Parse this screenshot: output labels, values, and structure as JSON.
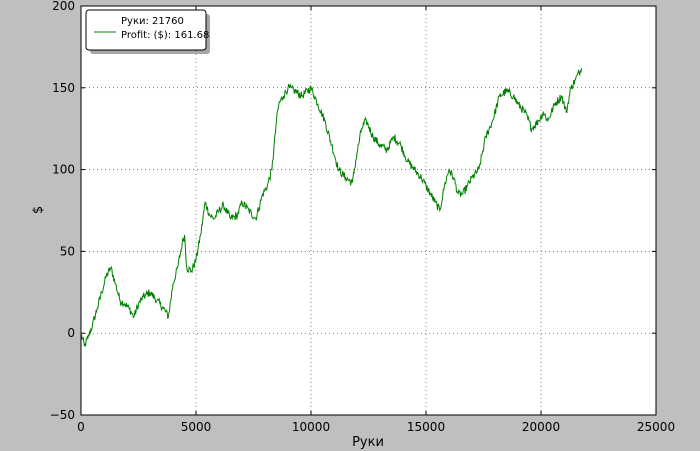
{
  "chart_data": {
    "type": "line",
    "title": "",
    "xlabel": "Руки",
    "ylabel": "$",
    "xlim": [
      0,
      25000
    ],
    "ylim": [
      -50,
      200
    ],
    "x_ticks": [
      "0",
      "5000",
      "10000",
      "15000",
      "20000",
      "25000"
    ],
    "y_ticks": [
      "−50",
      "0",
      "50",
      "100",
      "150",
      "200"
    ],
    "grid": true,
    "legend_position": "top-left",
    "legend": {
      "header": "Руки: 21760",
      "entry": "Profit: ($): 161.68"
    },
    "series": [
      {
        "name": "Profit: ($): 161.68",
        "color": "#008000",
        "x": [
          0,
          150,
          300,
          500,
          700,
          900,
          1100,
          1300,
          1500,
          1700,
          1900,
          2100,
          2300,
          2500,
          2700,
          3000,
          3300,
          3600,
          3800,
          4000,
          4200,
          4400,
          4500,
          4600,
          4800,
          5000,
          5200,
          5400,
          5600,
          5800,
          6000,
          6200,
          6500,
          6800,
          7000,
          7300,
          7600,
          7900,
          8100,
          8300,
          8500,
          8600,
          8800,
          9000,
          9300,
          9600,
          10000,
          10300,
          10600,
          10900,
          11200,
          11500,
          11800,
          12000,
          12200,
          12400,
          12700,
          13000,
          13300,
          13600,
          13900,
          14200,
          14500,
          14800,
          15000,
          15200,
          15400,
          15600,
          15800,
          16000,
          16200,
          16400,
          16600,
          16800,
          17000,
          17300,
          17600,
          17900,
          18200,
          18500,
          18800,
          19000,
          19300,
          19600,
          19900,
          20100,
          20300,
          20600,
          20900,
          21100,
          21300,
          21500,
          21760
        ],
        "y": [
          0,
          -8,
          -3,
          5,
          15,
          25,
          35,
          40,
          30,
          20,
          18,
          15,
          10,
          18,
          22,
          25,
          20,
          15,
          10,
          30,
          40,
          55,
          60,
          40,
          38,
          45,
          60,
          80,
          72,
          70,
          75,
          78,
          70,
          72,
          80,
          75,
          70,
          85,
          90,
          100,
          130,
          140,
          145,
          150,
          148,
          145,
          150,
          140,
          130,
          115,
          100,
          95,
          92,
          110,
          125,
          130,
          120,
          115,
          112,
          120,
          115,
          105,
          100,
          95,
          90,
          85,
          80,
          75,
          90,
          100,
          95,
          85,
          85,
          90,
          95,
          100,
          120,
          130,
          145,
          148,
          145,
          140,
          135,
          125,
          130,
          135,
          130,
          140,
          145,
          135,
          150,
          155,
          162
        ]
      }
    ]
  }
}
